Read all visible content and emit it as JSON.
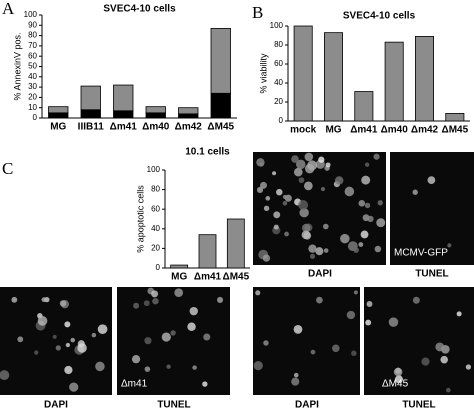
{
  "chart_data": [
    {
      "type": "bar",
      "title": "SVEC4-10 cells",
      "ylabel": "% AnnexinV pos.",
      "categories": [
        "MG",
        "IIIB11",
        "Δm41",
        "Δm40",
        "Δm42",
        "ΔM45"
      ],
      "series": [
        {
          "color": "#000000",
          "values": [
            5,
            8,
            7,
            5,
            4,
            24
          ]
        },
        {
          "color": "#8c8c8c",
          "values": [
            6,
            23,
            25,
            6,
            6,
            63
          ]
        }
      ],
      "stacked": true,
      "ylim": [
        0,
        100
      ],
      "yticks": [
        0,
        10,
        20,
        30,
        40,
        50,
        60,
        70,
        80,
        90,
        100
      ]
    },
    {
      "type": "bar",
      "title": "SVEC4-10 cells",
      "ylabel": "% viability",
      "categories": [
        "mock",
        "MG",
        "Δm41",
        "Δm40",
        "Δm42",
        "ΔM45"
      ],
      "values": [
        100,
        93,
        31,
        83,
        89,
        8
      ],
      "color": "#8c8c8c",
      "ylim": [
        0,
        100
      ],
      "yticks": [
        0,
        20,
        40,
        60,
        80,
        100
      ]
    },
    {
      "type": "bar",
      "title": "10.1 cells",
      "ylabel": "% apoptotic cells",
      "categories": [
        "MG",
        "Δm41",
        "ΔM45"
      ],
      "values": [
        3,
        34,
        50
      ],
      "color": "#8c8c8c",
      "ylim": [
        0,
        100
      ],
      "yticks": [
        0,
        20,
        40,
        60,
        80,
        100
      ]
    }
  ],
  "panel_letters": [
    "A",
    "B",
    "C"
  ],
  "image_captions": [
    "DAPI",
    "TUNEL",
    "DAPI",
    "TUNEL",
    "DAPI",
    "TUNEL"
  ],
  "image_insets": [
    "MCMV-GFP",
    "Δm41",
    "ΔM45"
  ]
}
